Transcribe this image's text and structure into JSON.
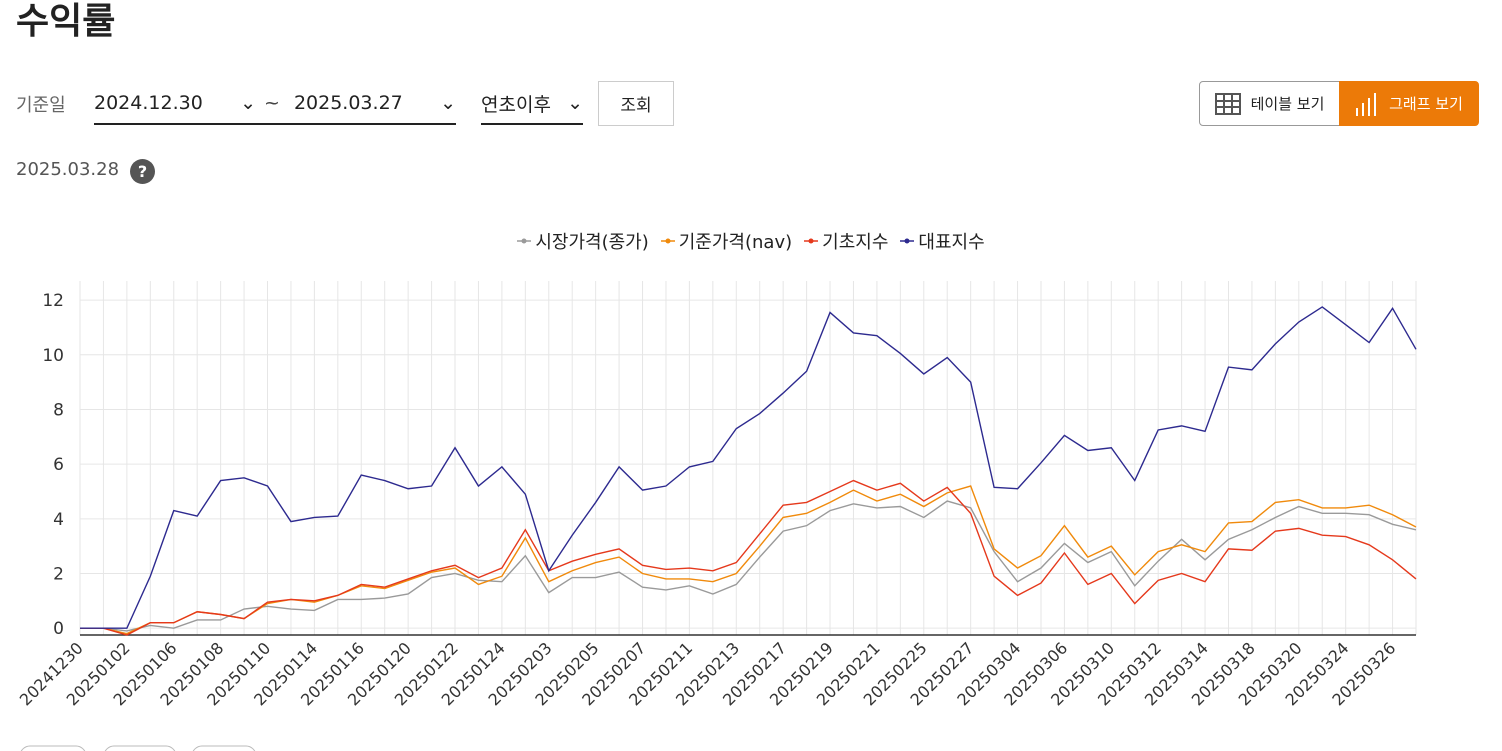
{
  "header": {
    "title": "수익률"
  },
  "filters": {
    "label": "기준일",
    "start": "2024.12.30",
    "tilde": "~",
    "end": "2025.03.27",
    "period": "연초이후",
    "search": "조회"
  },
  "views": [
    "테이블 보기",
    "그래프 보기"
  ],
  "as_of": "2025.03.28",
  "help": "?",
  "chart_data": {
    "type": "line",
    "categories": [
      "20241230",
      null,
      "20250102",
      null,
      "20250106",
      null,
      "20250108",
      null,
      "20250110",
      null,
      "20250114",
      null,
      "20250116",
      null,
      "20250120",
      null,
      "20250122",
      null,
      "20250124",
      null,
      "20250203",
      null,
      "20250205",
      null,
      "20250207",
      null,
      "20250211",
      null,
      "20250213",
      null,
      "20250217",
      null,
      "20250219",
      null,
      "20250221",
      null,
      "20250225",
      null,
      "20250227",
      null,
      "20250304",
      null,
      "20250306",
      null,
      "20250310",
      null,
      "20250312",
      null,
      "20250314",
      null,
      "20250318",
      null,
      "20250320",
      null,
      "20250324",
      null,
      "20250326",
      null
    ],
    "series": [
      {
        "name": "시장가격(종가)",
        "color": "#9a9a9a",
        "values": [
          0,
          0,
          -0.1,
          0.1,
          0.0,
          0.3,
          0.3,
          0.7,
          0.8,
          0.7,
          0.65,
          1.05,
          1.05,
          1.1,
          1.25,
          1.85,
          2.0,
          1.75,
          1.7,
          2.65,
          1.3,
          1.85,
          1.85,
          2.05,
          1.5,
          1.4,
          1.55,
          1.25,
          1.6,
          2.6,
          3.55,
          3.75,
          4.3,
          4.55,
          4.4,
          4.45,
          4.05,
          4.65,
          4.4,
          2.8,
          1.7,
          2.2,
          3.1,
          2.4,
          2.8,
          1.55,
          2.45,
          3.25,
          2.5,
          3.25,
          3.6,
          4.05,
          4.45,
          4.2,
          4.2,
          4.15,
          3.8,
          3.6
        ]
      },
      {
        "name": "기준가격(nav)",
        "color": "#f08a0c",
        "values": [
          0,
          0,
          -0.2,
          0.2,
          0.2,
          0.6,
          0.5,
          0.35,
          0.9,
          1.05,
          0.95,
          1.2,
          1.55,
          1.45,
          1.75,
          2.05,
          2.2,
          1.6,
          1.9,
          3.3,
          1.7,
          2.1,
          2.4,
          2.6,
          2.0,
          1.8,
          1.8,
          1.7,
          2.0,
          3.0,
          4.05,
          4.2,
          4.6,
          5.05,
          4.65,
          4.9,
          4.45,
          4.95,
          5.2,
          2.9,
          2.2,
          2.65,
          3.75,
          2.6,
          3.0,
          1.95,
          2.8,
          3.05,
          2.8,
          3.85,
          3.9,
          4.6,
          4.7,
          4.4,
          4.4,
          4.5,
          4.15,
          3.7
        ]
      },
      {
        "name": "기초지수",
        "color": "#e5391c",
        "values": [
          0,
          0,
          -0.25,
          0.2,
          0.2,
          0.6,
          0.5,
          0.35,
          0.95,
          1.05,
          1.0,
          1.2,
          1.6,
          1.5,
          1.8,
          2.1,
          2.3,
          1.85,
          2.2,
          3.6,
          2.1,
          2.45,
          2.7,
          2.9,
          2.3,
          2.15,
          2.2,
          2.1,
          2.4,
          3.45,
          4.5,
          4.6,
          5.0,
          5.4,
          5.05,
          5.3,
          4.65,
          5.15,
          4.2,
          1.9,
          1.2,
          1.65,
          2.75,
          1.6,
          2.0,
          0.9,
          1.75,
          2.0,
          1.7,
          2.9,
          2.85,
          3.55,
          3.65,
          3.4,
          3.35,
          3.05,
          2.5,
          1.8
        ]
      },
      {
        "name": "대표지수",
        "color": "#2d2a8f",
        "values": [
          0,
          0,
          0,
          1.9,
          4.3,
          4.1,
          5.4,
          5.5,
          5.2,
          3.9,
          4.05,
          4.1,
          5.6,
          5.4,
          5.1,
          5.2,
          6.6,
          5.2,
          5.9,
          4.9,
          2.1,
          3.4,
          4.6,
          5.9,
          5.05,
          5.2,
          5.9,
          6.1,
          7.3,
          7.85,
          8.6,
          9.4,
          11.55,
          10.8,
          10.7,
          10.05,
          9.3,
          9.9,
          9.0,
          5.15,
          5.1,
          6.05,
          7.05,
          6.5,
          6.6,
          5.4,
          7.25,
          7.4,
          7.2,
          9.55,
          9.45,
          10.4,
          11.2,
          11.75,
          11.1,
          10.45,
          11.7,
          10.2
        ]
      }
    ],
    "ylim": [
      -0.25,
      12.7
    ],
    "yticks": [
      0,
      2,
      4,
      6,
      8,
      10,
      12
    ],
    "grid": true,
    "legend": "top"
  }
}
